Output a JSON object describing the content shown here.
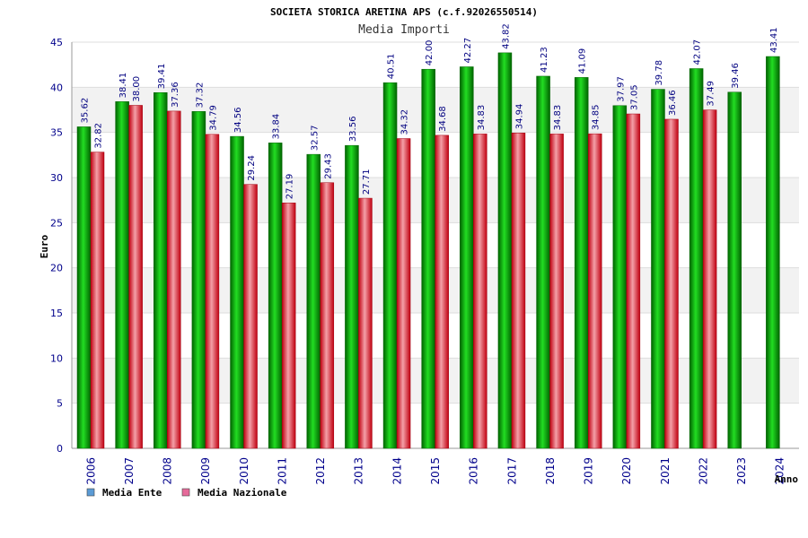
{
  "chart_data": {
    "type": "bar",
    "title": "SOCIETA STORICA ARETINA APS (c.f.92026550514)",
    "subtitle": "Media Importi",
    "xlabel": "Anno",
    "ylabel": "Euro",
    "ylim": [
      0,
      45
    ],
    "yticks": [
      0,
      5,
      10,
      15,
      20,
      25,
      30,
      35,
      40,
      45
    ],
    "grid": true,
    "legend_position": "bottom-left",
    "categories": [
      "2006",
      "2007",
      "2008",
      "2009",
      "2010",
      "2011",
      "2012",
      "2013",
      "2014",
      "2015",
      "2016",
      "2017",
      "2018",
      "2019",
      "2020",
      "2021",
      "2022",
      "2023",
      "2024"
    ],
    "series": [
      {
        "name": "Media Ente",
        "color": "#00b400",
        "values": [
          35.62,
          38.41,
          39.41,
          37.32,
          34.56,
          33.84,
          32.57,
          33.56,
          40.51,
          42.0,
          42.27,
          43.82,
          41.23,
          41.09,
          37.97,
          39.78,
          42.07,
          39.46,
          43.41
        ],
        "labels": [
          "35.62",
          "38.41",
          "39.41",
          "37.32",
          "34.56",
          "33.84",
          "32.57",
          "33.56",
          "40.51",
          "42.00",
          "42.27",
          "43.82",
          "41.23",
          "41.09",
          "37.97",
          "39.78",
          "42.07",
          "39.46",
          "43.41"
        ]
      },
      {
        "name": "Media Nazionale",
        "color": "#e8303a",
        "values": [
          32.82,
          38.0,
          37.36,
          34.79,
          29.24,
          27.19,
          29.43,
          27.71,
          34.32,
          34.68,
          34.83,
          34.94,
          34.83,
          34.85,
          37.05,
          36.46,
          37.49,
          null,
          null
        ],
        "labels": [
          "32.82",
          "38.00",
          "37.36",
          "34.79",
          "29.24",
          "27.19",
          "29.43",
          "27.71",
          "34.32",
          "34.68",
          "34.83",
          "34.94",
          "34.83",
          "34.85",
          "37.05",
          "36.46",
          "37.49",
          null,
          null
        ]
      }
    ],
    "legend": [
      {
        "label": "Media Ente",
        "color": "#5b9bd5"
      },
      {
        "label": "Media Nazionale",
        "color": "#e66a9a"
      }
    ]
  }
}
